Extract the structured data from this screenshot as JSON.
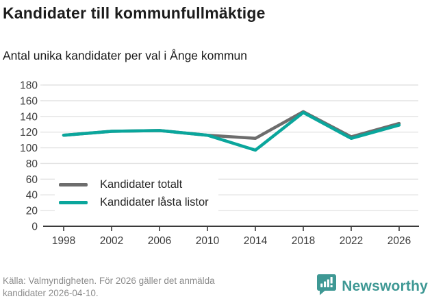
{
  "header": {
    "title": "Kandidater till kommunfullmäktige",
    "subtitle": "Antal unika kandidater per val i Ånge kommun"
  },
  "chart_data": {
    "type": "line",
    "categories": [
      "1998",
      "2002",
      "2006",
      "2010",
      "2014",
      "2018",
      "2022",
      "2026"
    ],
    "series": [
      {
        "name": "Kandidater totalt",
        "color": "#6d6d6d",
        "values": [
          116,
          121,
          122,
          116,
          112,
          146,
          114,
          131
        ]
      },
      {
        "name": "Kandidater låsta listor",
        "color": "#0aa69c",
        "values": [
          116,
          121,
          122,
          116,
          97,
          145,
          112,
          129
        ]
      }
    ],
    "title": "Kandidater till kommunfullmäktige",
    "subtitle": "Antal unika kandidater per val i Ånge kommun",
    "xlabel": "",
    "ylabel": "",
    "ylim": [
      0,
      180
    ],
    "ytick_step": 20,
    "grid": true,
    "gridline_color": "#e3e3e3",
    "axis_color": "#3a3a3a",
    "tick_label_color": "#3c3c3c",
    "legend_position": "inside-bottom-left"
  },
  "footer": {
    "source": "Källa: Valmyndigheten. För 2026 gäller det anmälda kandidater 2026-04-10.",
    "brand": "Newsworthy",
    "brand_color": "#3e9894"
  }
}
